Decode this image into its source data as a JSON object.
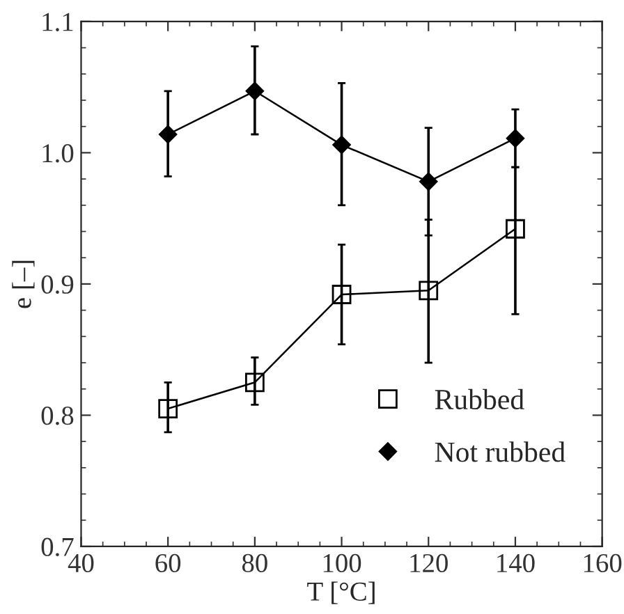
{
  "chart_data": {
    "type": "line",
    "xlabel": "T [°C]",
    "ylabel": "e [–]",
    "x": [
      60,
      80,
      100,
      120,
      140
    ],
    "series": [
      {
        "name": "Rubbed",
        "color": "#000000",
        "marker": "square",
        "values": [
          0.805,
          0.825,
          0.892,
          0.895,
          0.942
        ],
        "errors": [
          [
            0.787,
            0.825
          ],
          [
            0.808,
            0.844
          ],
          [
            0.854,
            0.93
          ],
          [
            0.84,
            0.949
          ],
          [
            0.877,
            0.989
          ]
        ]
      },
      {
        "name": "Not rubbed",
        "color": "#000000",
        "marker": "diamond",
        "values": [
          1.014,
          1.047,
          1.006,
          0.978,
          1.011
        ],
        "errors": [
          [
            0.982,
            1.047
          ],
          [
            1.014,
            1.081
          ],
          [
            0.96,
            1.053
          ],
          [
            0.937,
            1.019
          ],
          [
            0.989,
            1.033
          ]
        ]
      }
    ],
    "xlim": [
      40,
      160
    ],
    "xticks": [
      40,
      60,
      80,
      100,
      120,
      140,
      160
    ],
    "ylim": [
      0.7,
      1.1
    ],
    "yticks": [
      {
        "value": 0.7,
        "label": "0.7"
      },
      {
        "value": 0.8,
        "label": "0.8"
      },
      {
        "value": 0.9,
        "label": "0.9"
      },
      {
        "value": 1.0,
        "label": "1.0"
      },
      {
        "value": 1.1,
        "label": "1.1"
      }
    ],
    "grid": false,
    "legend": "bottom right",
    "line_style": "solid"
  }
}
